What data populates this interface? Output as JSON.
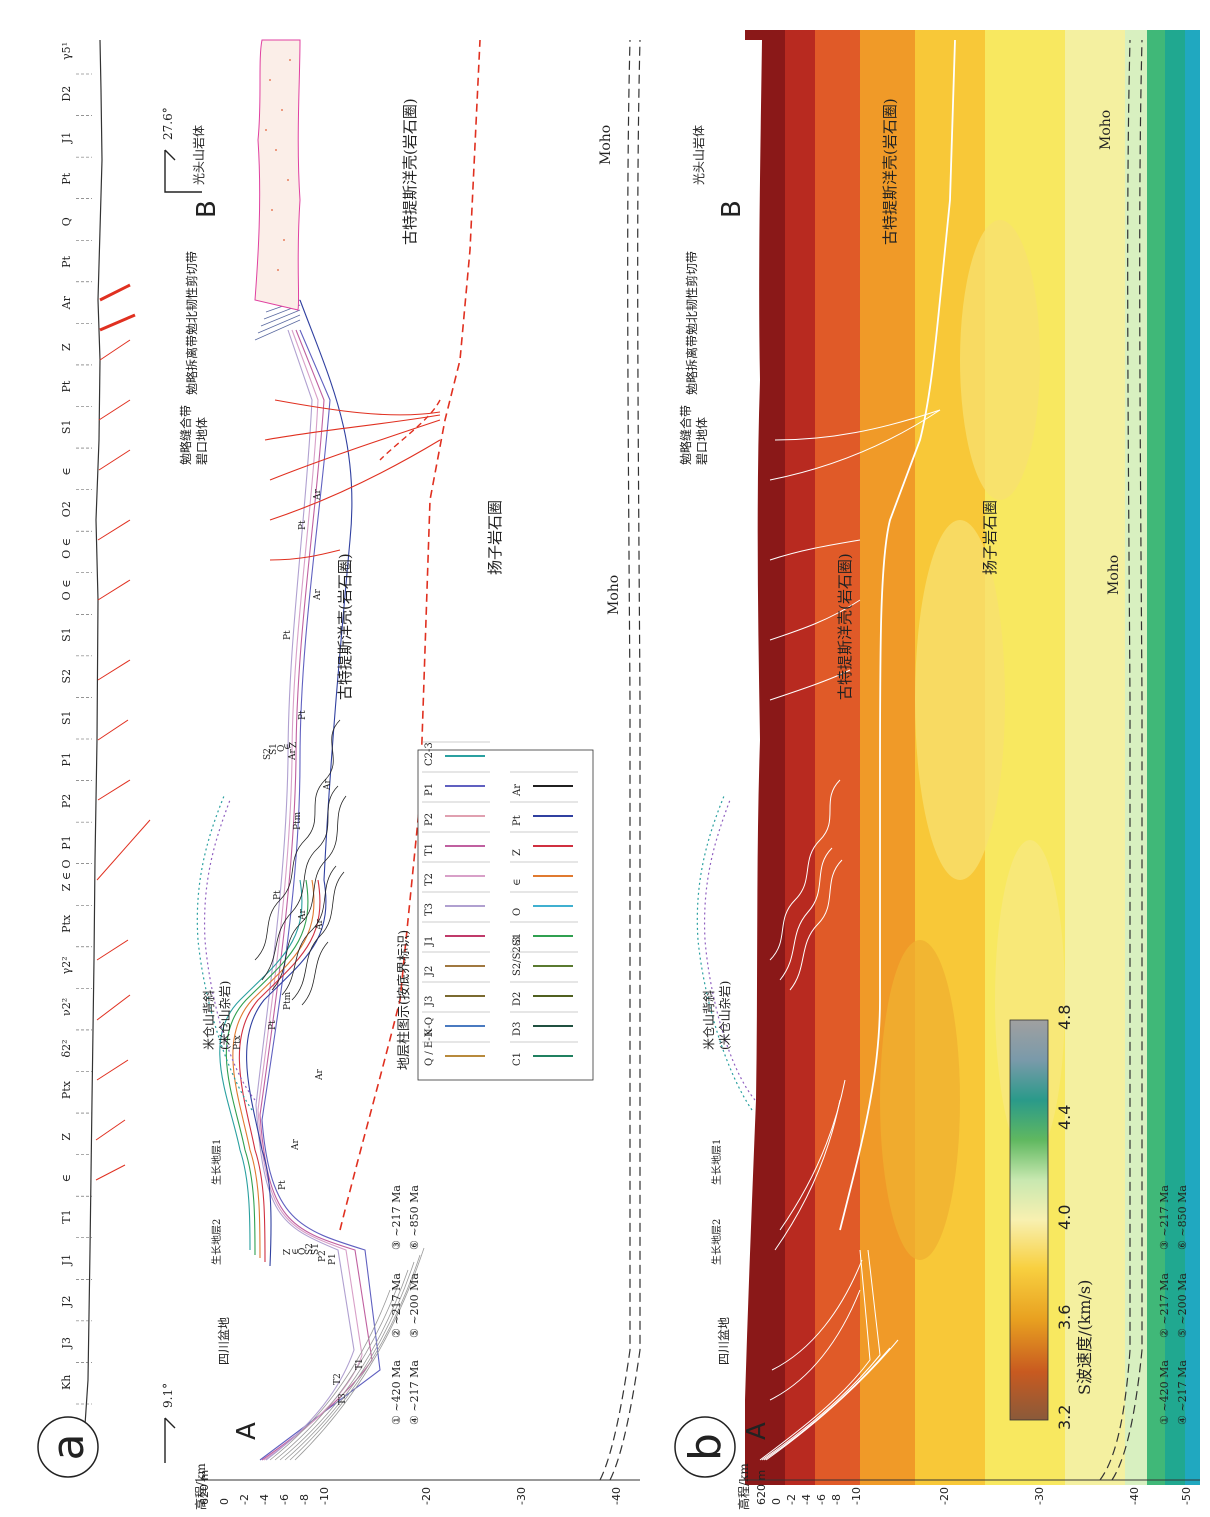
{
  "panel_a": {
    "label": "a",
    "end_left": "A",
    "end_right": "B",
    "orient_left": "9.1°",
    "orient_right": "27.6°",
    "axis_title": "高程/km",
    "axis_ticks": [
      "620 m",
      "0",
      "-2",
      "-4",
      "-6",
      "-8",
      "-10",
      "-20",
      "-30",
      "-40"
    ],
    "surface_labels": [
      "Kh",
      "J3",
      "J2",
      "J1",
      "T1",
      "∈",
      "Z",
      "Ptx",
      "δ2²",
      "ν2²",
      "γ2²",
      "Ptx",
      "Z ∈ O",
      "P1",
      "P2",
      "P1",
      "S1",
      "S2",
      "S1",
      "O ∈",
      "O ∈",
      "O2",
      "∈",
      "S1",
      "Pt",
      "Z",
      "Ar",
      "Pt",
      "Q",
      "Pt",
      "J1",
      "D2",
      "γ5¹"
    ],
    "regions": [
      "四川盆地",
      "生长地层2",
      "生长地层1",
      "米仓山背斜",
      "(米仓山杂岩)",
      "勉略缝合带",
      "碧口地体",
      "勉略拆离带",
      "勉北韧性剪切带",
      "光头山岩体",
      "古特提斯洋壳(岩石圈)",
      "古特提斯洋壳(岩石圈)",
      "扬子岩石圈",
      "Moho",
      "Moho"
    ],
    "inner_labels": [
      "Pt",
      "Ar",
      "Ar",
      "Pt",
      "Ar",
      "Pt",
      "Ar",
      "Ptm",
      "Ptm",
      "Ptx",
      "Ar",
      "Ar",
      "Pt",
      "Pt",
      "Ar",
      "Ar",
      "T1",
      "T2",
      "T3",
      "P1",
      "P2",
      "S1",
      "S2",
      "O",
      "∈",
      "Z",
      "Pt",
      "S2",
      "S1",
      "O",
      "∈",
      "Z"
    ],
    "ages": [
      "① ~420 Ma",
      "② ~217 Ma",
      "③ ~217 Ma",
      "④ ~217 Ma",
      "⑤ ~200 Ma",
      "⑥ ~850 Ma"
    ],
    "legend": {
      "title": "地层柱图示(按底界标识)",
      "items": [
        {
          "label": "Q / E-N-Q",
          "color": "#b88a3c"
        },
        {
          "label": "K",
          "color": "#4a7ac0"
        },
        {
          "label": "J3",
          "color": "#7a6a30"
        },
        {
          "label": "J2",
          "color": "#a07840"
        },
        {
          "label": "J1",
          "color": "#c03a6a"
        },
        {
          "label": "T3",
          "color": "#b0a0d0"
        },
        {
          "label": "T2",
          "color": "#d8a0c8"
        },
        {
          "label": "T1",
          "color": "#c060a0"
        },
        {
          "label": "P2",
          "color": "#e0a0b0"
        },
        {
          "label": "P1",
          "color": "#6060c0"
        },
        {
          "label": "C2-3",
          "color": "#2aa0a0"
        },
        {
          "label": "C1",
          "color": "#208060"
        },
        {
          "label": "D3",
          "color": "#205040"
        },
        {
          "label": "D2",
          "color": "#506020"
        },
        {
          "label": "S2/S2-3",
          "color": "#5a7a30"
        },
        {
          "label": "S1",
          "color": "#30a050"
        },
        {
          "label": "O",
          "color": "#40b0d0"
        },
        {
          "label": "∈",
          "color": "#e07a30"
        },
        {
          "label": "Z",
          "color": "#d03040"
        },
        {
          "label": "Pt",
          "color": "#3040a0"
        },
        {
          "label": "Ar",
          "color": "#202020"
        }
      ]
    }
  },
  "panel_b": {
    "label": "b",
    "end_left": "A",
    "end_right": "B",
    "axis_title": "高程/km",
    "axis_ticks": [
      "620 m",
      "0",
      "-2",
      "-4",
      "-6",
      "-8",
      "-10",
      "-20",
      "-30",
      "-40",
      "-50"
    ],
    "regions": [
      "四川盆地",
      "生长地层2",
      "生长地层1",
      "米仓山背斜",
      "(米仓山杂岩)",
      "勉略缝合带",
      "碧口地体",
      "勉略拆离带",
      "勉北韧性剪切带",
      "光头山岩体",
      "古特提斯洋壳(岩石圈)",
      "古特提斯洋壳(岩石圈)",
      "扬子岩石圈",
      "Moho",
      "Moho"
    ],
    "ages": [
      "① ~420 Ma",
      "② ~217 Ma",
      "③ ~217 Ma",
      "④ ~217 Ma",
      "⑤ ~200 Ma",
      "⑥ ~850 Ma"
    ],
    "colorbar": {
      "title": "S波速度/(km/s)",
      "ticks": [
        "3.2",
        "3.6",
        "4.0",
        "4.4",
        "4.8"
      ],
      "colors": [
        "#8a5a3a",
        "#c85a20",
        "#e8a020",
        "#f8d040",
        "#f8f0b0",
        "#c8e8b0",
        "#60b860",
        "#2a9a8a",
        "#7a9aaa",
        "#a0a0a0"
      ]
    },
    "velocity_bands": [
      "#8a1818",
      "#b82a20",
      "#e05a28",
      "#f09a28",
      "#f8c838",
      "#f8e860",
      "#f4f0a0",
      "#d8f0c0",
      "#40b878",
      "#20a890",
      "#20a8c0"
    ]
  }
}
